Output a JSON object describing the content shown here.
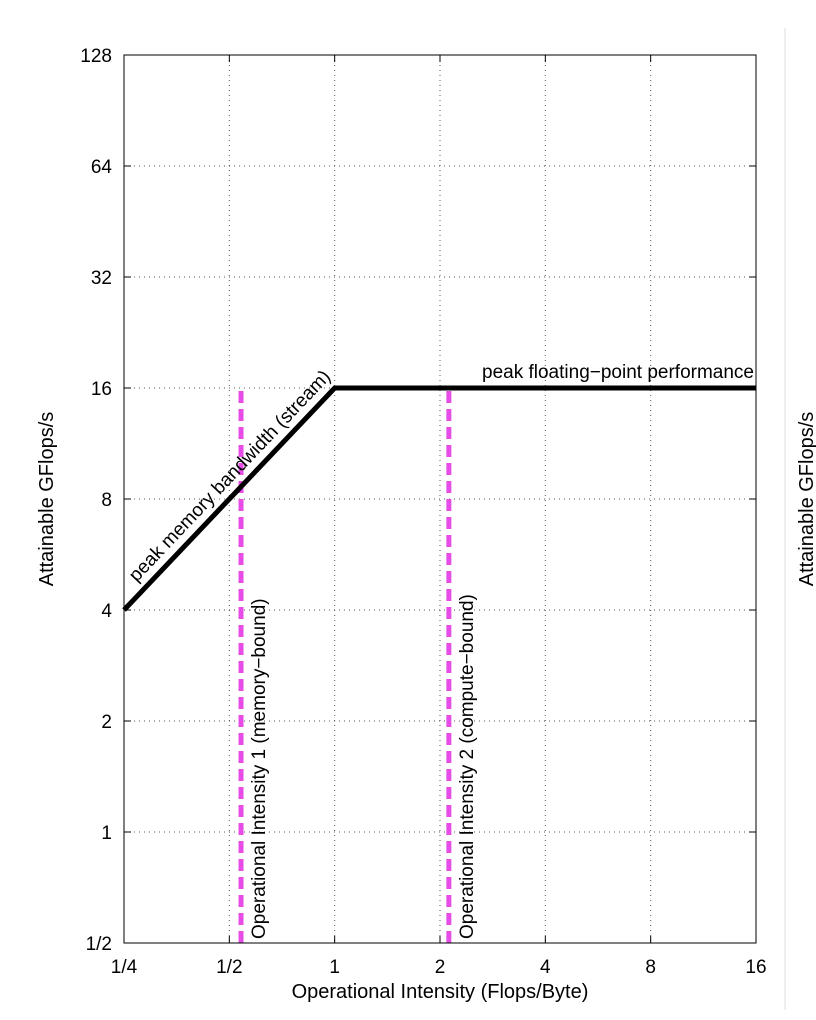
{
  "chart_data": {
    "type": "line",
    "scale": "log2",
    "xlabel": "Operational Intensity (Flops/Byte)",
    "ylabel": "Attainable GFlops/s",
    "second_ylabel": "Attainable GFlops/s",
    "xlim": [
      0.25,
      16
    ],
    "ylim": [
      0.5,
      128
    ],
    "x_ticks": [
      {
        "value": 0.25,
        "label": "1/4"
      },
      {
        "value": 0.5,
        "label": "1/2"
      },
      {
        "value": 1,
        "label": "1"
      },
      {
        "value": 2,
        "label": "2"
      },
      {
        "value": 4,
        "label": "4"
      },
      {
        "value": 8,
        "label": "8"
      },
      {
        "value": 16,
        "label": "16"
      }
    ],
    "y_ticks": [
      {
        "value": 0.5,
        "label": "1/2"
      },
      {
        "value": 1,
        "label": "1"
      },
      {
        "value": 2,
        "label": "2"
      },
      {
        "value": 4,
        "label": "4"
      },
      {
        "value": 8,
        "label": "8"
      },
      {
        "value": 16,
        "label": "16"
      },
      {
        "value": 32,
        "label": "32"
      },
      {
        "value": 64,
        "label": "64"
      },
      {
        "value": 128,
        "label": "128"
      }
    ],
    "grid": true,
    "series": [
      {
        "name": "roofline",
        "color": "#000000",
        "x": [
          0.25,
          1,
          16
        ],
        "y": [
          4,
          16,
          16
        ]
      }
    ],
    "vlines": [
      {
        "x": 0.54,
        "label": "Operational Intensity 1 (memory−bound)",
        "color": "#e64ce6"
      },
      {
        "x": 2.12,
        "label": "Operational Intensity 2 (compute−bound)",
        "color": "#e64ce6"
      }
    ],
    "annotations": {
      "bandwidth": "peak memory bandwidth (stream)",
      "peak": "peak floating−point performance"
    }
  }
}
